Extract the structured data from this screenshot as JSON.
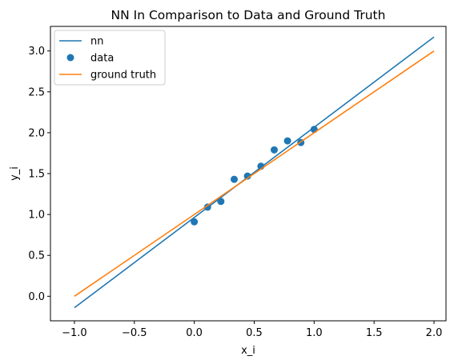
{
  "chart_data": {
    "type": "line",
    "title": "NN In Comparison to Data and Ground Truth",
    "xlabel": "x_i",
    "ylabel": "y_i",
    "xlim": [
      -1.2,
      2.1
    ],
    "ylim": [
      -0.3,
      3.3
    ],
    "xticks": [
      -1.0,
      -0.5,
      0.0,
      0.5,
      1.0,
      1.5,
      2.0
    ],
    "xtick_labels": [
      "−1.0",
      "−0.5",
      "0.0",
      "0.5",
      "1.0",
      "1.5",
      "2.0"
    ],
    "yticks": [
      0.0,
      0.5,
      1.0,
      1.5,
      2.0,
      2.5,
      3.0
    ],
    "ytick_labels": [
      "0.0",
      "0.5",
      "1.0",
      "1.5",
      "2.0",
      "2.5",
      "3.0"
    ],
    "grid": false,
    "legend_position": "top-left",
    "series": [
      {
        "name": "nn",
        "kind": "line",
        "color": "#1f77b4",
        "x": [
          -1.0,
          2.0
        ],
        "y": [
          -0.14,
          3.17
        ]
      },
      {
        "name": "data",
        "kind": "scatter",
        "color": "#1f77b4",
        "x": [
          0.0,
          0.111,
          0.222,
          0.333,
          0.444,
          0.556,
          0.667,
          0.778,
          0.889,
          1.0
        ],
        "y": [
          0.91,
          1.09,
          1.16,
          1.43,
          1.47,
          1.59,
          1.79,
          1.9,
          1.88,
          2.04
        ]
      },
      {
        "name": "ground truth",
        "kind": "line",
        "color": "#ff7f0e",
        "x": [
          -1.0,
          2.0
        ],
        "y": [
          0.0,
          3.0
        ]
      }
    ]
  }
}
